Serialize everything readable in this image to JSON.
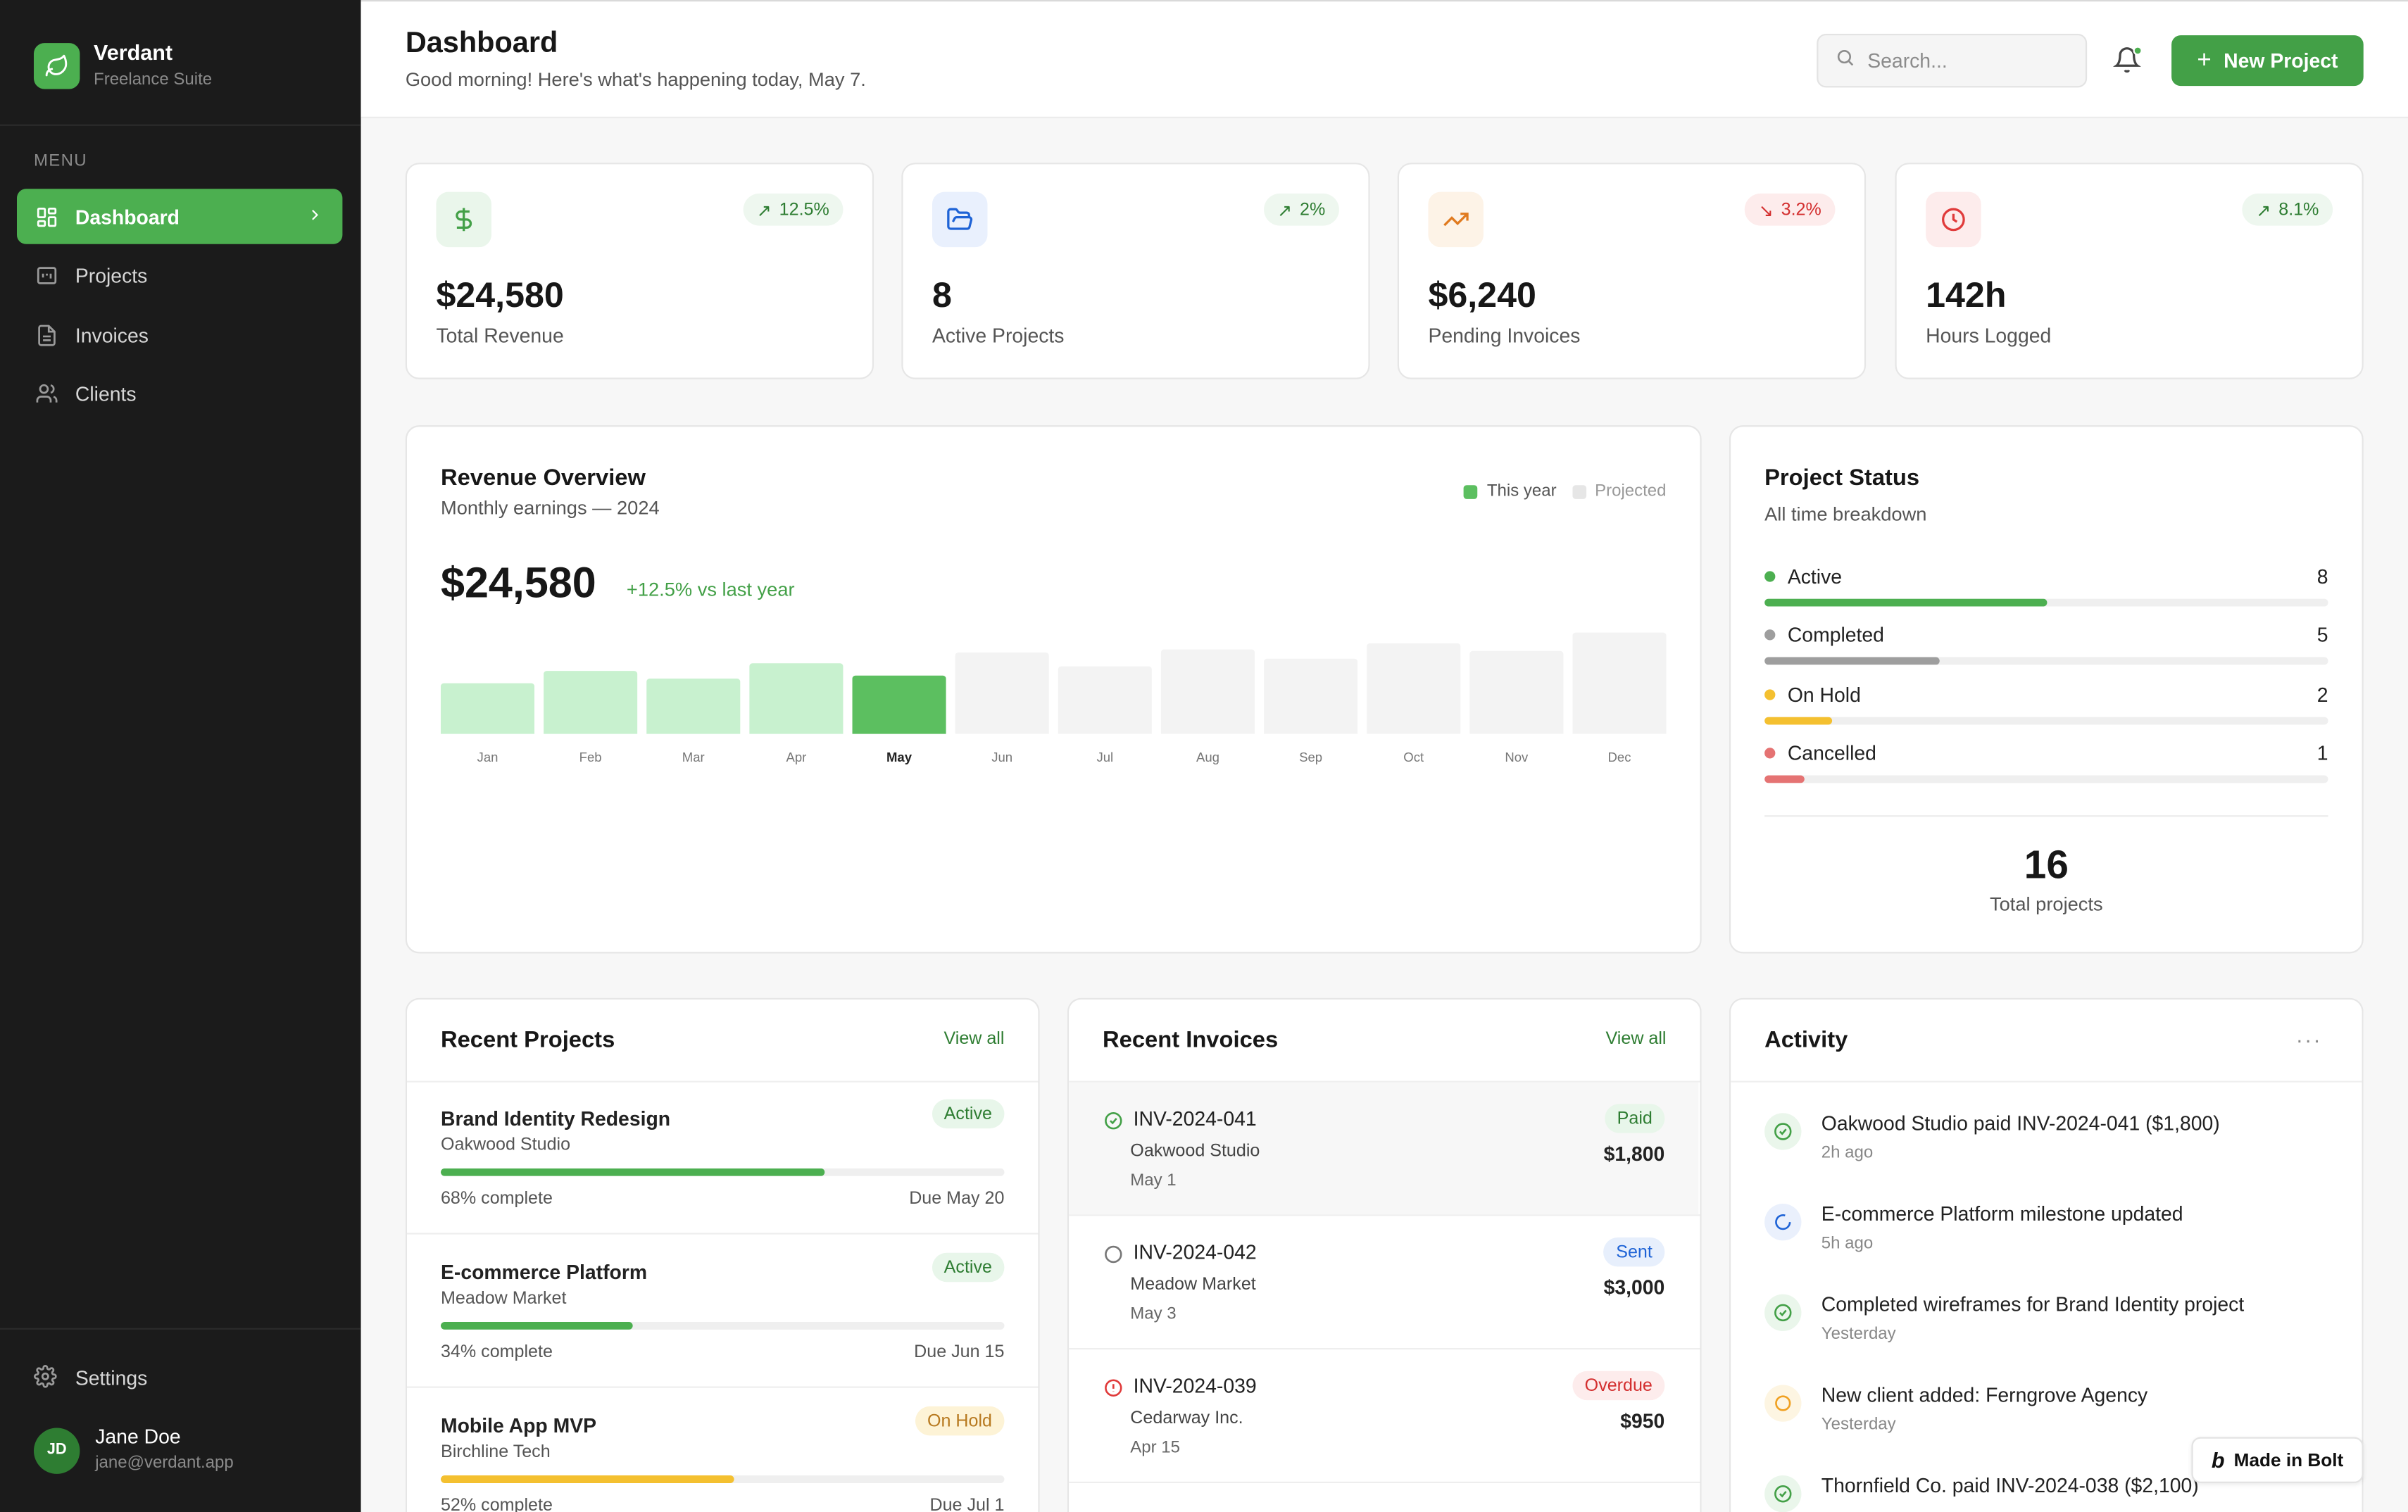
{
  "brand": {
    "name": "Verdant",
    "subtitle": "Freelance Suite"
  },
  "sidebar": {
    "menu_label": "MENU",
    "items": [
      {
        "label": "Dashboard",
        "icon": "grid-icon",
        "active": true
      },
      {
        "label": "Projects",
        "icon": "folder-icon"
      },
      {
        "label": "Invoices",
        "icon": "document-icon"
      },
      {
        "label": "Clients",
        "icon": "users-icon"
      }
    ],
    "settings_label": "Settings",
    "user": {
      "initials": "JD",
      "name": "Jane Doe",
      "email": "jane@verdant.app"
    }
  },
  "header": {
    "title": "Dashboard",
    "subtitle": "Good morning! Here's what's happening today, May 7.",
    "search_placeholder": "Search...",
    "new_button_label": "New Project"
  },
  "stats": [
    {
      "value": "$24,580",
      "label": "Total Revenue",
      "change": "12.5%",
      "trend": "up",
      "icon": "dollar-icon",
      "accent": "#43a047"
    },
    {
      "value": "8",
      "label": "Active Projects",
      "change": "2%",
      "trend": "up",
      "icon": "folder-open-icon",
      "accent": "#1e63d6"
    },
    {
      "value": "$6,240",
      "label": "Pending Invoices",
      "change": "3.2%",
      "trend": "down",
      "icon": "trending-up-icon",
      "accent": "#e07a1f"
    },
    {
      "value": "142h",
      "label": "Hours Logged",
      "change": "8.1%",
      "trend": "up",
      "icon": "clock-icon",
      "accent": "#e03b3b"
    }
  ],
  "revenue": {
    "title": "Revenue Overview",
    "subtitle": "Monthly earnings — 2024",
    "value": "$24,580",
    "change": "+12.5% vs last year",
    "legend": {
      "actual": "This year",
      "projected": "Projected"
    },
    "current_month": "May"
  },
  "chart_data": {
    "type": "bar",
    "categories": [
      "Jan",
      "Feb",
      "Mar",
      "Apr",
      "May",
      "Jun",
      "Jul",
      "Aug",
      "Sep",
      "Oct",
      "Nov",
      "Dec"
    ],
    "series": [
      {
        "name": "This year",
        "values": [
          0.5,
          0.62,
          0.54,
          0.7,
          0.58,
          null,
          null,
          null,
          null,
          null,
          null,
          null
        ]
      },
      {
        "name": "Projected",
        "values": [
          null,
          null,
          null,
          null,
          null,
          0.8,
          0.67,
          0.84,
          0.74,
          0.9,
          0.82,
          1.0
        ]
      }
    ],
    "ylim": [
      0,
      1
    ]
  },
  "project_status": {
    "title": "Project Status",
    "subtitle": "All time breakdown",
    "items": [
      {
        "label": "Active",
        "count": "8",
        "fraction": 0.5,
        "color": "#4caf50"
      },
      {
        "label": "Completed",
        "count": "5",
        "fraction": 0.31,
        "color": "#9e9e9e"
      },
      {
        "label": "On Hold",
        "count": "2",
        "fraction": 0.12,
        "color": "#f4c030"
      },
      {
        "label": "Cancelled",
        "count": "1",
        "fraction": 0.07,
        "color": "#e57373"
      }
    ],
    "total": "16",
    "total_label": "Total projects"
  },
  "recent_projects": {
    "title": "Recent Projects",
    "view_all": "View all",
    "items": [
      {
        "name": "Brand Identity Redesign",
        "client": "Oakwood Studio",
        "status": "Active",
        "progress": 0.68,
        "progress_label": "68% complete",
        "due": "Due May 20",
        "color": "#4caf50"
      },
      {
        "name": "E-commerce Platform",
        "client": "Meadow Market",
        "status": "Active",
        "progress": 0.34,
        "progress_label": "34% complete",
        "due": "Due Jun 15",
        "color": "#4caf50"
      },
      {
        "name": "Mobile App MVP",
        "client": "Birchline Tech",
        "status": "On Hold",
        "progress": 0.52,
        "progress_label": "52% complete",
        "due": "Due Jul 1",
        "color": "#f4c030"
      }
    ]
  },
  "recent_invoices": {
    "title": "Recent Invoices",
    "view_all": "View all",
    "items": [
      {
        "id": "INV-2024-041",
        "client": "Oakwood Studio",
        "date": "May 1",
        "status": "Paid",
        "amount": "$1,800"
      },
      {
        "id": "INV-2024-042",
        "client": "Meadow Market",
        "date": "May 3",
        "status": "Sent",
        "amount": "$3,000"
      },
      {
        "id": "INV-2024-039",
        "client": "Cedarway Inc.",
        "date": "Apr 15",
        "status": "Overdue",
        "amount": "$950"
      }
    ]
  },
  "activity": {
    "title": "Activity",
    "items": [
      {
        "text": "Oakwood Studio paid INV-2024-041 ($1,800)",
        "time": "2h ago",
        "kind": "check"
      },
      {
        "text": "E-commerce Platform milestone updated",
        "time": "5h ago",
        "kind": "progress"
      },
      {
        "text": "Completed wireframes for Brand Identity project",
        "time": "Yesterday",
        "kind": "check"
      },
      {
        "text": "New client added: Ferngrove Agency",
        "time": "Yesterday",
        "kind": "client"
      },
      {
        "text": "Thornfield Co. paid INV-2024-038 ($2,100)",
        "time": "",
        "kind": "check"
      }
    ]
  },
  "bolt_badge": "Made in Bolt"
}
